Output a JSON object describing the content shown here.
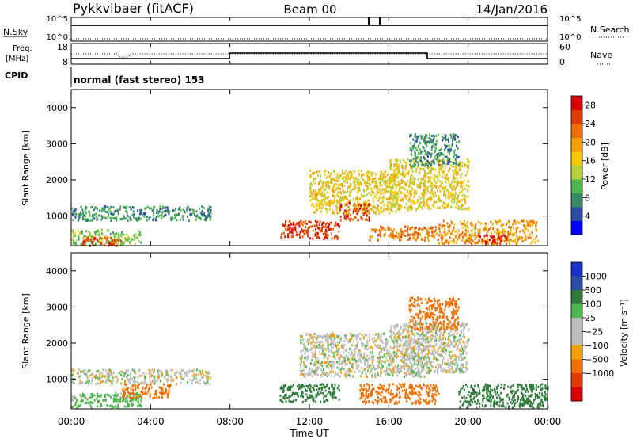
{
  "header": {
    "station": "Pykkvibaer (fitACF)",
    "beam": "Beam 00",
    "date": "14/Jan/2016"
  },
  "panels": {
    "nsky": {
      "left_label": "N.Sky",
      "right_label": "N.Search",
      "left_ticks": [
        "10^5",
        "10^0"
      ],
      "right_ticks": [
        "10^5",
        "10^0"
      ]
    },
    "freq": {
      "left_label_1": "Freq.",
      "left_label_2": "[MHz]",
      "right_label": "Nave",
      "left_ticks": [
        "18",
        "8"
      ],
      "right_ticks": [
        "60",
        "0"
      ]
    },
    "cpid": {
      "label": "CPID",
      "mode_text": "normal (fast stereo) 153"
    }
  },
  "colors": {
    "power": [
      "#0000ff",
      "#2b4ca8",
      "#3a8a6a",
      "#4cb84c",
      "#b4d23c",
      "#f5c800",
      "#f5a000",
      "#ef7000",
      "#e03c00",
      "#d80000"
    ],
    "velocity": [
      "#1a2ec8",
      "#2b4ca8",
      "#2e7a3a",
      "#4cb84c",
      "#bcbcbc",
      "#bcbcbc",
      "#f5a000",
      "#ef7000",
      "#e03c00",
      "#d80000"
    ]
  },
  "chart_data": [
    {
      "type": "heatmap",
      "name": "power",
      "xlabel": "",
      "ylabel": "Slant Range [km]",
      "xlim": [
        0,
        24
      ],
      "ylim": [
        180,
        4500
      ],
      "yticks": [
        "1000",
        "2000",
        "3000",
        "4000"
      ],
      "colorbar_label": "Power [dB]",
      "colorbar_ticks": [
        "4",
        "8",
        "12",
        "16",
        "20",
        "24",
        "28"
      ],
      "colorbar_range": [
        0,
        30
      ],
      "regions": [
        {
          "t0": 0.0,
          "t1": 7.0,
          "r0": 900,
          "r1": 1300,
          "value": 8
        },
        {
          "t0": 0.0,
          "t1": 3.5,
          "r0": 250,
          "r1": 650,
          "value": 12
        },
        {
          "t0": 0.5,
          "t1": 2.5,
          "r0": 200,
          "r1": 450,
          "value": 24
        },
        {
          "t0": 10.5,
          "t1": 13.5,
          "r0": 400,
          "r1": 900,
          "value": 26
        },
        {
          "t0": 12.0,
          "t1": 16.5,
          "r0": 1100,
          "r1": 2300,
          "value": 16
        },
        {
          "t0": 13.5,
          "t1": 15.0,
          "r0": 900,
          "r1": 1400,
          "value": 26
        },
        {
          "t0": 15.0,
          "t1": 18.5,
          "r0": 350,
          "r1": 750,
          "value": 22
        },
        {
          "t0": 16.0,
          "t1": 20.0,
          "r0": 1200,
          "r1": 2600,
          "value": 16
        },
        {
          "t0": 17.0,
          "t1": 19.5,
          "r0": 2400,
          "r1": 3300,
          "value": 8
        },
        {
          "t0": 18.5,
          "t1": 23.5,
          "r0": 250,
          "r1": 900,
          "value": 20
        },
        {
          "t0": 20.5,
          "t1": 22.0,
          "r0": 250,
          "r1": 500,
          "value": 28
        }
      ]
    },
    {
      "type": "heatmap",
      "name": "velocity",
      "xlabel": "Time UT",
      "ylabel": "Slant Range [km]",
      "xlim": [
        0,
        24
      ],
      "ylim": [
        180,
        4500
      ],
      "xticks": [
        "00:00",
        "04:00",
        "08:00",
        "12:00",
        "16:00",
        "20:00",
        "00:00"
      ],
      "yticks": [
        "1000",
        "2000",
        "3000",
        "4000"
      ],
      "colorbar_label": "Velocity [m s⁻¹]",
      "colorbar_ticks": [
        "1000",
        "500",
        "100",
        "25",
        "−25",
        "−100",
        "−500",
        "−1000"
      ],
      "regions": [
        {
          "t0": 0.0,
          "t1": 7.0,
          "r0": 900,
          "r1": 1300,
          "value": 0
        },
        {
          "t0": 0.0,
          "t1": 3.5,
          "r0": 250,
          "r1": 650,
          "value": 60
        },
        {
          "t0": 2.5,
          "t1": 5.0,
          "r0": 500,
          "r1": 900,
          "value": -150
        },
        {
          "t0": 10.5,
          "t1": 13.5,
          "r0": 400,
          "r1": 900,
          "value": 150
        },
        {
          "t0": 11.5,
          "t1": 18.0,
          "r0": 1100,
          "r1": 2300,
          "value": 0
        },
        {
          "t0": 14.5,
          "t1": 18.5,
          "r0": 350,
          "r1": 900,
          "value": -200
        },
        {
          "t0": 16.0,
          "t1": 20.0,
          "r0": 1200,
          "r1": 2600,
          "value": 0
        },
        {
          "t0": 17.0,
          "t1": 19.5,
          "r0": 2400,
          "r1": 3300,
          "value": -150
        },
        {
          "t0": 19.5,
          "t1": 24.0,
          "r0": 250,
          "r1": 900,
          "value": 150
        }
      ]
    }
  ]
}
